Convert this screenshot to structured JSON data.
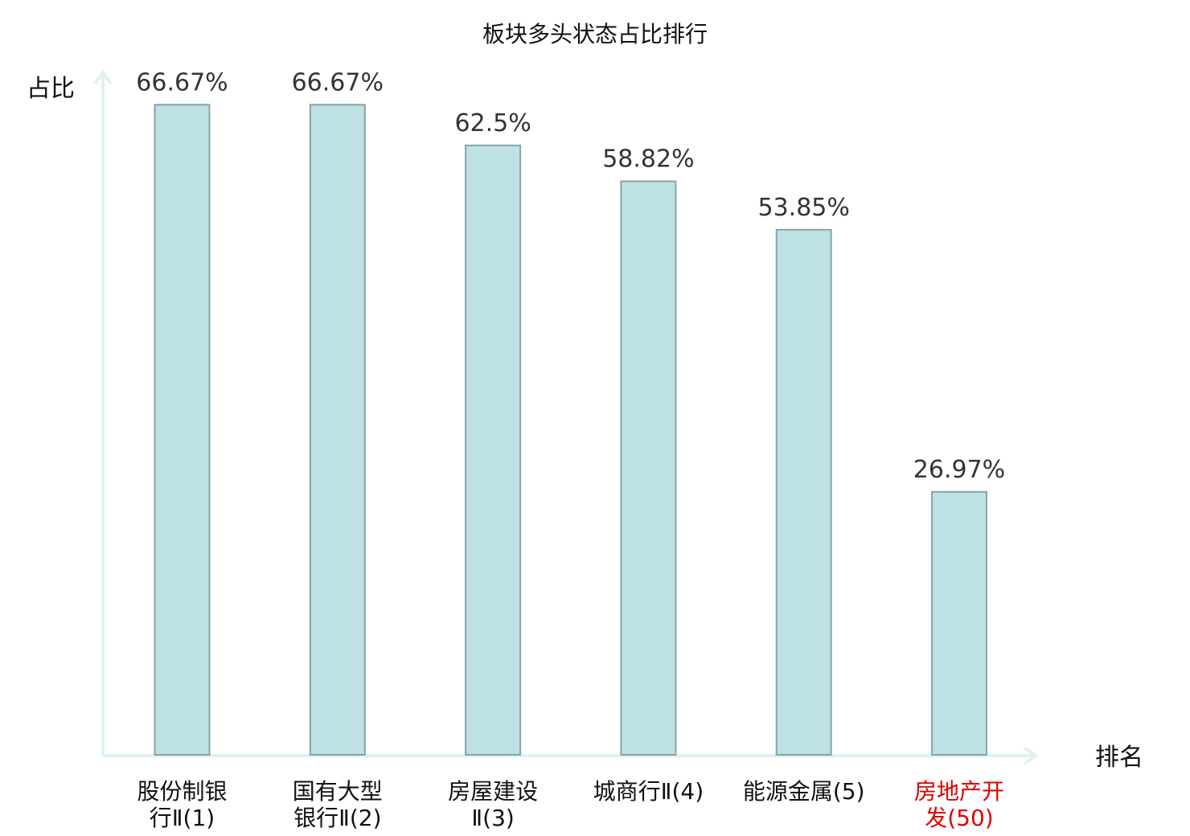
{
  "chart_data": {
    "type": "bar",
    "title": "板块多头状态占比排行",
    "xlabel": "排名",
    "ylabel": "占比",
    "categories": [
      [
        "股份制银",
        "行Ⅱ(1)"
      ],
      [
        "国有大型",
        "银行Ⅱ(2)"
      ],
      [
        "房屋建设",
        "Ⅱ(3)"
      ],
      [
        "城商行Ⅱ(4)"
      ],
      [
        "能源金属(5)"
      ],
      [
        "房地产开",
        "发(50)"
      ]
    ],
    "values": [
      66.67,
      66.67,
      62.5,
      58.82,
      53.85,
      26.97
    ],
    "value_labels": [
      "66.67%",
      "66.67%",
      "62.5%",
      "58.82%",
      "53.85%",
      "26.97%"
    ],
    "highlight_index": 5,
    "ylim": [
      0,
      70
    ],
    "grid": false,
    "legend": "none"
  },
  "colors": {
    "bar_fill": "#bde1e4",
    "bar_stroke": "#86a5a8",
    "axis": "#def2ef",
    "label": "#111111",
    "value_label": "#333333",
    "highlight": "#e00000"
  }
}
